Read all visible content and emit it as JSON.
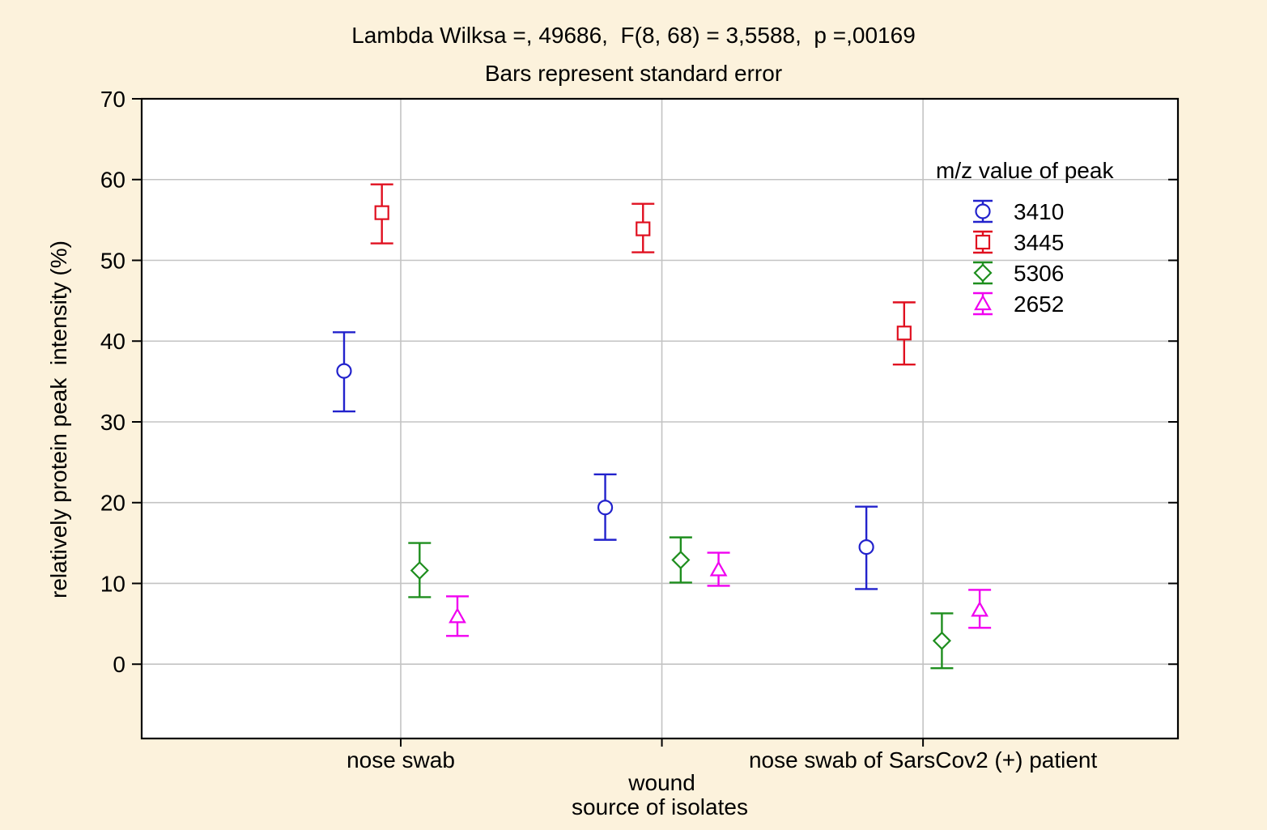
{
  "chart_data": {
    "type": "scatter",
    "title": "Lambda Wilksa =, 49686,  F(8, 68) = 3,5588,  p =,00169",
    "subtitle": "Bars represent standard error",
    "xlabel": "source of isolates",
    "ylabel": "relatively protein peak  intensity (%)",
    "ylim": [
      -9.2,
      70
    ],
    "yticks": [
      0,
      10,
      20,
      30,
      40,
      50,
      60,
      70
    ],
    "grid": true,
    "error_bar_meaning": "standard error",
    "legend": {
      "title": "m/z value of peak",
      "position": "top-right-inside"
    },
    "categories": [
      "nose swab",
      "wound",
      "nose swab of SarsCov2 (+) patient"
    ],
    "series": [
      {
        "name": "3410",
        "marker": "circle",
        "color": "#2222CC",
        "means": [
          36.3,
          19.4,
          14.5
        ],
        "se_low": [
          31.3,
          15.4,
          9.3
        ],
        "se_high": [
          41.1,
          23.5,
          19.5
        ]
      },
      {
        "name": "3445",
        "marker": "square",
        "color": "#E01020",
        "means": [
          55.9,
          53.9,
          41.0
        ],
        "se_low": [
          52.1,
          51.0,
          37.1
        ],
        "se_high": [
          59.4,
          57.0,
          44.8
        ]
      },
      {
        "name": "5306",
        "marker": "diamond",
        "color": "#1E8E1E",
        "means": [
          11.6,
          12.9,
          2.9
        ],
        "se_low": [
          8.3,
          10.1,
          -0.5
        ],
        "se_high": [
          15.0,
          15.7,
          6.3
        ]
      },
      {
        "name": "2652",
        "marker": "triangle",
        "color": "#F000F0",
        "means": [
          5.9,
          11.7,
          6.7
        ],
        "se_low": [
          3.5,
          9.7,
          4.5
        ],
        "se_high": [
          8.4,
          13.8,
          9.2
        ]
      }
    ]
  }
}
